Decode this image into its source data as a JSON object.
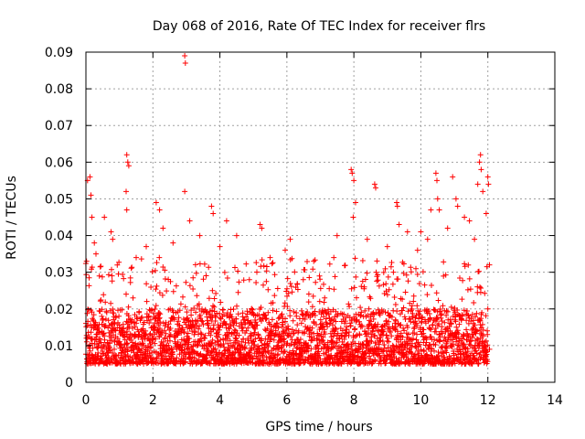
{
  "chart_data": {
    "type": "scatter",
    "title": "Day 068 of 2016, Rate Of TEC Index for receiver flrs",
    "xlabel": "GPS time / hours",
    "ylabel": "ROTI / TECUs",
    "xlim": [
      0,
      14
    ],
    "ylim": [
      0,
      0.09
    ],
    "xticks": [
      "0",
      "2",
      "4",
      "6",
      "8",
      "10",
      "12",
      "14"
    ],
    "yticks": [
      "0",
      "0.01",
      "0.02",
      "0.03",
      "0.04",
      "0.05",
      "0.06",
      "0.07",
      "0.08",
      "0.09"
    ],
    "grid": true,
    "marker": "+",
    "series": [
      {
        "name": "ROTI",
        "color": "#ff0000",
        "data_range_hours": [
          0,
          12
        ],
        "baseline_band": [
          0.005,
          0.02
        ],
        "points": [
          {
            "x": 0.02,
            "y": 0.033
          },
          {
            "x": 0.05,
            "y": 0.055
          },
          {
            "x": 0.12,
            "y": 0.056
          },
          {
            "x": 0.15,
            "y": 0.051
          },
          {
            "x": 0.18,
            "y": 0.045
          },
          {
            "x": 0.25,
            "y": 0.038
          },
          {
            "x": 0.3,
            "y": 0.035
          },
          {
            "x": 0.4,
            "y": 0.029
          },
          {
            "x": 0.55,
            "y": 0.045
          },
          {
            "x": 0.75,
            "y": 0.041
          },
          {
            "x": 0.8,
            "y": 0.039
          },
          {
            "x": 1.22,
            "y": 0.062
          },
          {
            "x": 1.25,
            "y": 0.06
          },
          {
            "x": 1.28,
            "y": 0.059
          },
          {
            "x": 1.2,
            "y": 0.052
          },
          {
            "x": 1.22,
            "y": 0.047
          },
          {
            "x": 1.5,
            "y": 0.034
          },
          {
            "x": 1.8,
            "y": 0.037
          },
          {
            "x": 2.1,
            "y": 0.049
          },
          {
            "x": 2.2,
            "y": 0.047
          },
          {
            "x": 2.3,
            "y": 0.042
          },
          {
            "x": 2.6,
            "y": 0.038
          },
          {
            "x": 2.95,
            "y": 0.089
          },
          {
            "x": 2.97,
            "y": 0.087
          },
          {
            "x": 2.95,
            "y": 0.052
          },
          {
            "x": 3.1,
            "y": 0.044
          },
          {
            "x": 3.4,
            "y": 0.04
          },
          {
            "x": 3.75,
            "y": 0.048
          },
          {
            "x": 3.8,
            "y": 0.046
          },
          {
            "x": 4.0,
            "y": 0.037
          },
          {
            "x": 4.2,
            "y": 0.044
          },
          {
            "x": 4.5,
            "y": 0.04
          },
          {
            "x": 5.2,
            "y": 0.043
          },
          {
            "x": 5.25,
            "y": 0.042
          },
          {
            "x": 5.5,
            "y": 0.034
          },
          {
            "x": 5.95,
            "y": 0.036
          },
          {
            "x": 6.1,
            "y": 0.039
          },
          {
            "x": 6.8,
            "y": 0.033
          },
          {
            "x": 7.4,
            "y": 0.034
          },
          {
            "x": 7.5,
            "y": 0.04
          },
          {
            "x": 7.92,
            "y": 0.058
          },
          {
            "x": 7.95,
            "y": 0.057
          },
          {
            "x": 8.0,
            "y": 0.055
          },
          {
            "x": 8.05,
            "y": 0.049
          },
          {
            "x": 7.98,
            "y": 0.045
          },
          {
            "x": 8.4,
            "y": 0.039
          },
          {
            "x": 8.62,
            "y": 0.054
          },
          {
            "x": 8.65,
            "y": 0.053
          },
          {
            "x": 9.0,
            "y": 0.037
          },
          {
            "x": 9.28,
            "y": 0.049
          },
          {
            "x": 9.3,
            "y": 0.048
          },
          {
            "x": 9.35,
            "y": 0.043
          },
          {
            "x": 9.6,
            "y": 0.041
          },
          {
            "x": 9.9,
            "y": 0.036
          },
          {
            "x": 10.0,
            "y": 0.041
          },
          {
            "x": 10.2,
            "y": 0.039
          },
          {
            "x": 10.3,
            "y": 0.047
          },
          {
            "x": 10.45,
            "y": 0.057
          },
          {
            "x": 10.48,
            "y": 0.055
          },
          {
            "x": 10.5,
            "y": 0.05
          },
          {
            "x": 10.55,
            "y": 0.047
          },
          {
            "x": 10.8,
            "y": 0.042
          },
          {
            "x": 10.95,
            "y": 0.056
          },
          {
            "x": 11.05,
            "y": 0.05
          },
          {
            "x": 11.1,
            "y": 0.048
          },
          {
            "x": 11.3,
            "y": 0.045
          },
          {
            "x": 11.45,
            "y": 0.044
          },
          {
            "x": 11.6,
            "y": 0.039
          },
          {
            "x": 11.7,
            "y": 0.054
          },
          {
            "x": 11.75,
            "y": 0.06
          },
          {
            "x": 11.78,
            "y": 0.062
          },
          {
            "x": 11.8,
            "y": 0.058
          },
          {
            "x": 11.85,
            "y": 0.052
          },
          {
            "x": 11.95,
            "y": 0.046
          },
          {
            "x": 12.0,
            "y": 0.056
          },
          {
            "x": 12.02,
            "y": 0.054
          },
          {
            "x": 12.05,
            "y": 0.032
          },
          {
            "x": 12.0,
            "y": 0.02
          },
          {
            "x": 11.98,
            "y": 0.014
          },
          {
            "x": 12.05,
            "y": 0.009
          }
        ]
      }
    ]
  }
}
